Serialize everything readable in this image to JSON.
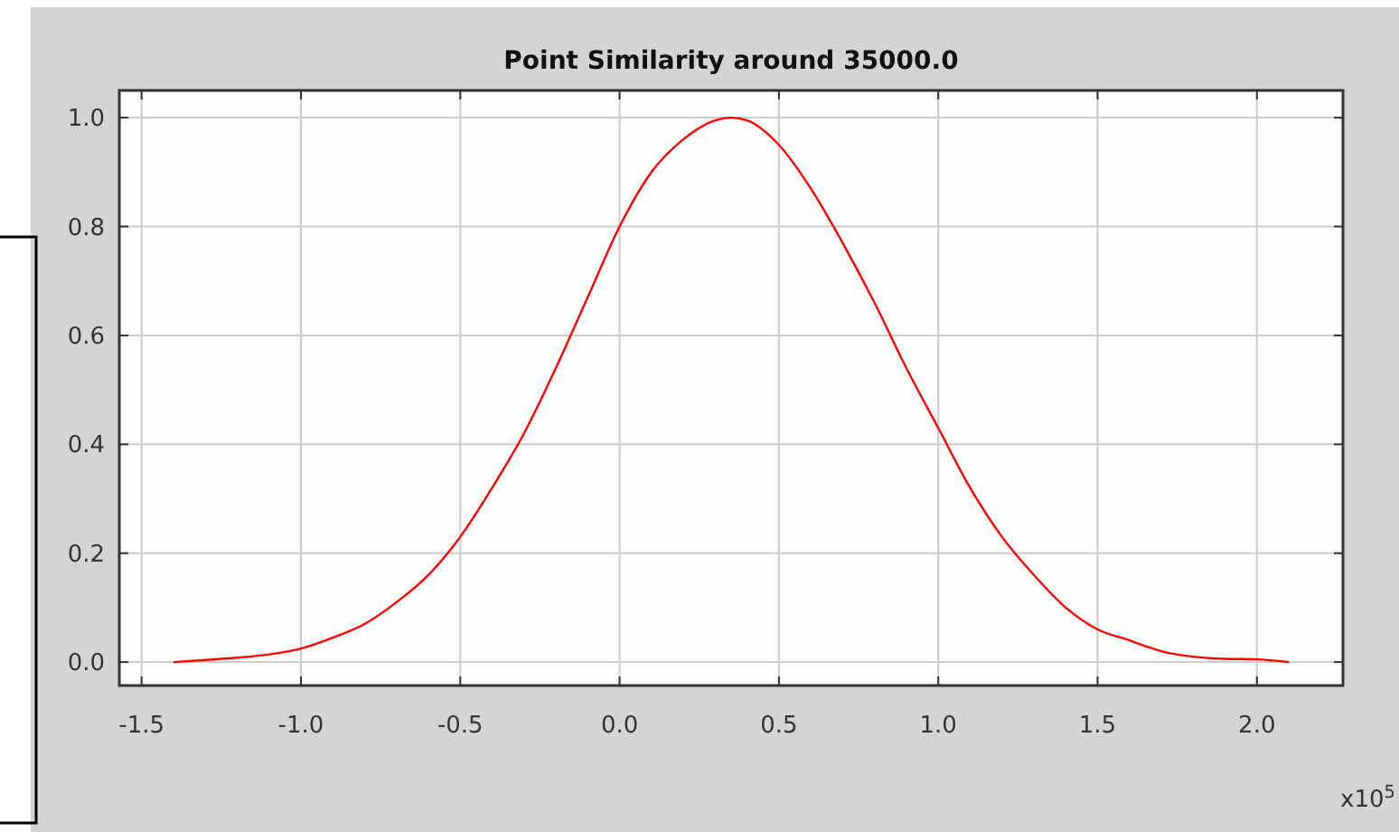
{
  "chart_data": {
    "type": "line",
    "title": "Point Similarity around 35000.0",
    "xlabel": "x10$^{5}$",
    "x": [
      -1.4,
      -1.3,
      -1.2,
      -1.1,
      -1.0,
      -0.9,
      -0.8,
      -0.7,
      -0.6,
      -0.5,
      -0.4,
      -0.3,
      -0.2,
      -0.1,
      0.0,
      0.1,
      0.2,
      0.3,
      0.35,
      0.4,
      0.5,
      0.6,
      0.7,
      0.8,
      0.9,
      1.0,
      1.1,
      1.2,
      1.3,
      1.4,
      1.5,
      1.6,
      1.7,
      1.8,
      1.9,
      2.0,
      2.1
    ],
    "series": [
      {
        "color": "#ff0000",
        "values": [
          0.0,
          0.004,
          0.008,
          0.014,
          0.025,
          0.045,
          0.07,
          0.11,
          0.16,
          0.23,
          0.32,
          0.42,
          0.54,
          0.67,
          0.8,
          0.9,
          0.96,
          0.995,
          1.0,
          0.995,
          0.95,
          0.87,
          0.77,
          0.66,
          0.54,
          0.43,
          0.32,
          0.23,
          0.16,
          0.1,
          0.06,
          0.04,
          0.02,
          0.01,
          0.006,
          0.005,
          0.0
        ]
      }
    ],
    "xlim": [
      -1.57,
      2.27
    ],
    "ylim": [
      -0.043,
      1.05
    ],
    "xticks": [
      {
        "value": -1.5,
        "label": "-1.5"
      },
      {
        "value": -1.0,
        "label": "-1.0"
      },
      {
        "value": -0.5,
        "label": "-0.5"
      },
      {
        "value": 0,
        "label": "0.0"
      },
      {
        "value": 0.5,
        "label": "0.5"
      },
      {
        "value": 1.0,
        "label": "1.0"
      },
      {
        "value": 1.5,
        "label": "1.5"
      },
      {
        "value": 2.0,
        "label": "2.0"
      }
    ],
    "yticks": [
      {
        "value": 0,
        "label": "0.0"
      },
      {
        "value": 0.2,
        "label": "0.2"
      },
      {
        "value": 0.4,
        "label": "0.4"
      },
      {
        "value": 0.6,
        "label": "0.6"
      },
      {
        "value": 0.8,
        "label": "0.8"
      },
      {
        "value": 1.0,
        "label": "1.0"
      }
    ],
    "grid": true,
    "marker": "none",
    "line_style": "solid"
  }
}
